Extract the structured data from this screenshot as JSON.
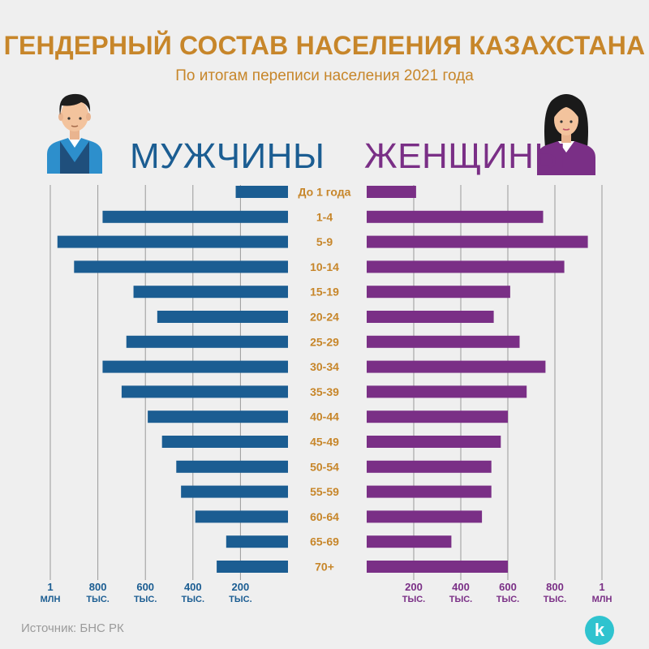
{
  "header": {
    "title": "ГЕНДЕРНЫЙ СОСТАВ НАСЕЛЕНИЯ КАЗАХСТАНА",
    "subtitle": "По итогам переписи населения 2021 года"
  },
  "labels": {
    "men": "МУЖЧИНЫ",
    "women": "ЖЕНЩИНЫ"
  },
  "footer": {
    "source": "Источник: БНС РК",
    "logo_letter": "k"
  },
  "colors": {
    "men": "#1b5d92",
    "women": "#7a2f86",
    "title": "#c7862a",
    "age_label": "#c7862a",
    "gridline": "#999999",
    "logo": "#2fc3cf"
  },
  "icons": {
    "men": "man-avatar-icon",
    "women": "woman-avatar-icon",
    "logo": "kapital-logo-icon"
  },
  "chart_data": {
    "type": "bar",
    "orientation": "horizontal-population-pyramid",
    "categories": [
      "До 1 года",
      "1-4",
      "5-9",
      "10-14",
      "15-19",
      "20-24",
      "25-29",
      "30-34",
      "35-39",
      "40-44",
      "45-49",
      "50-54",
      "55-59",
      "60-64",
      "65-69",
      "70+"
    ],
    "series": [
      {
        "name": "МУЖЧИНЫ",
        "values": [
          220,
          780,
          970,
          900,
          650,
          550,
          680,
          780,
          700,
          590,
          530,
          470,
          450,
          390,
          260,
          300
        ]
      },
      {
        "name": "ЖЕНЩИНЫ",
        "values": [
          210,
          750,
          940,
          840,
          610,
          540,
          650,
          760,
          680,
          600,
          570,
          530,
          530,
          490,
          360,
          600
        ]
      }
    ],
    "xlim": [
      0,
      1000
    ],
    "ticks": [
      {
        "value": 1000,
        "line1": "1",
        "line2": "МЛН"
      },
      {
        "value": 800,
        "line1": "800",
        "line2": "ТЫС."
      },
      {
        "value": 600,
        "line1": "600",
        "line2": "ТЫС."
      },
      {
        "value": 400,
        "line1": "400",
        "line2": "ТЫС."
      },
      {
        "value": 200,
        "line1": "200",
        "line2": "ТЫС."
      }
    ],
    "grid": true
  }
}
